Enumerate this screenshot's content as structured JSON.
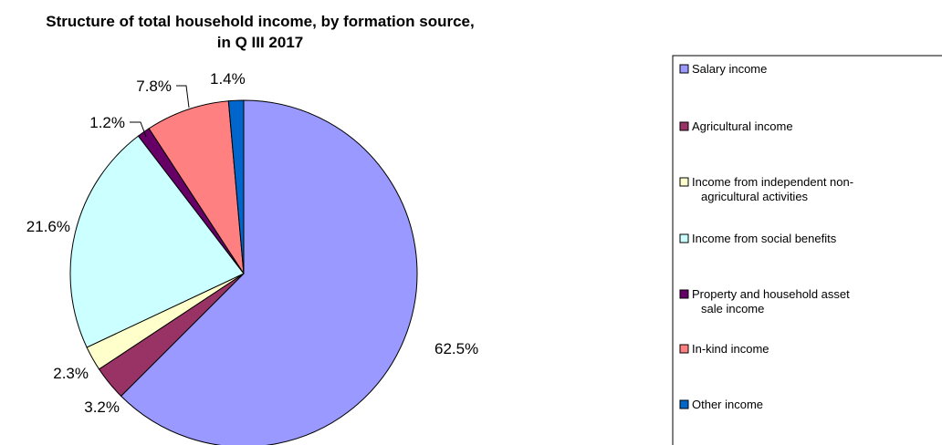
{
  "chart_data": {
    "type": "pie",
    "title": "Structure of total household income, by formation source, in Q III 2017",
    "title_lines": [
      "Structure of total household income, by formation source,",
      "in Q III 2017"
    ],
    "legend_position": "right",
    "start": "12 o'clock, clockwise",
    "slices": [
      {
        "label": "Salary income",
        "legend_lines": [
          "Salary income"
        ],
        "value": 62.5,
        "display": "62.5%",
        "color": "#9999ff"
      },
      {
        "label": "Agricultural income",
        "legend_lines": [
          "Agricultural income"
        ],
        "value": 3.2,
        "display": "3.2%",
        "color": "#993366"
      },
      {
        "label": "Income from independent non-agricultural activities",
        "legend_lines": [
          "Income from independent non-",
          "agricultural activities"
        ],
        "value": 2.3,
        "display": "2.3%",
        "color": "#ffffcc"
      },
      {
        "label": "Income from social benefits",
        "legend_lines": [
          "Income from social benefits"
        ],
        "value": 21.6,
        "display": "21.6%",
        "color": "#ccffff"
      },
      {
        "label": "Property and household asset sale income",
        "legend_lines": [
          "Property and household asset",
          "sale income"
        ],
        "value": 1.2,
        "display": "1.2%",
        "color": "#660066"
      },
      {
        "label": "In-kind income",
        "legend_lines": [
          "In-kind income"
        ],
        "value": 7.8,
        "display": "7.8%",
        "color": "#ff8080"
      },
      {
        "label": "Other income",
        "legend_lines": [
          "Other income"
        ],
        "value": 1.4,
        "display": "1.4%",
        "color": "#0066cc"
      }
    ]
  }
}
